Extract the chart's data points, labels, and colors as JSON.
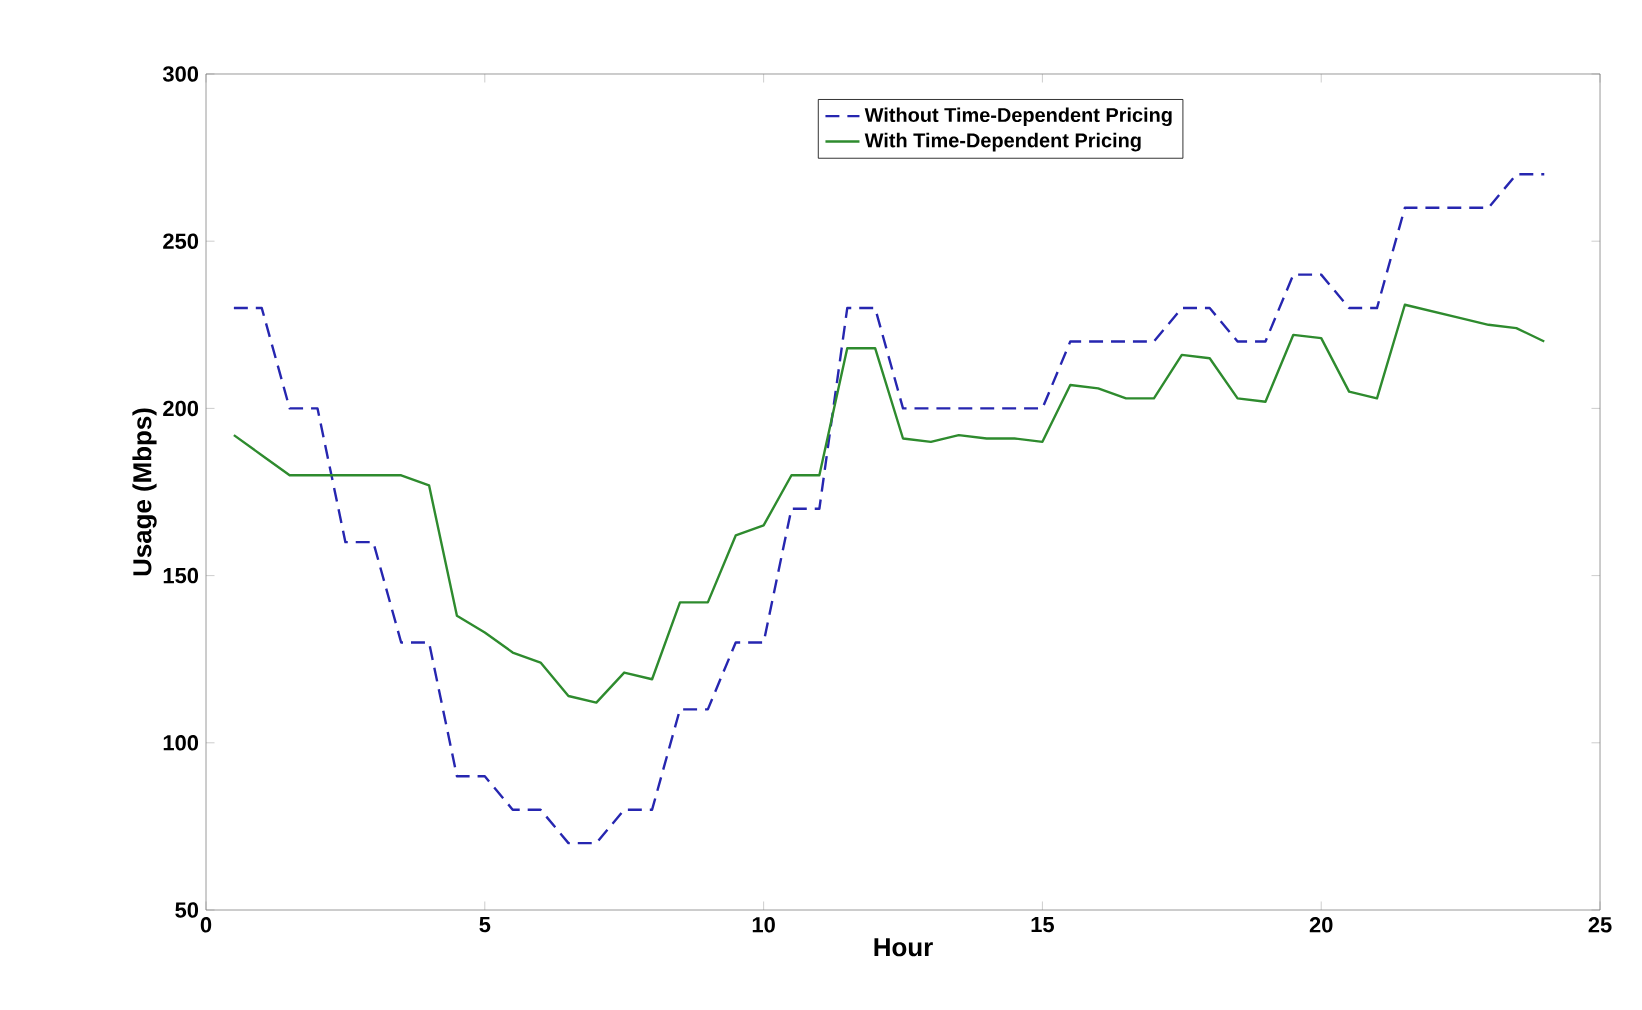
{
  "chart_data": {
    "type": "line",
    "xlabel": "Hour",
    "ylabel": "Usage (Mbps)",
    "x": [
      0.5,
      1,
      1.5,
      2,
      2.5,
      3,
      3.5,
      4,
      4.5,
      5,
      5.5,
      6,
      6.5,
      7,
      7.5,
      8,
      8.5,
      9,
      9.5,
      10,
      10.5,
      11,
      11.5,
      12,
      12.5,
      13,
      13.5,
      14,
      14.5,
      15,
      15.5,
      16,
      16.5,
      17,
      17.5,
      18,
      18.5,
      19,
      19.5,
      20,
      20.5,
      21,
      21.5,
      22,
      22.5,
      23,
      23.5,
      24
    ],
    "series": [
      {
        "name": "Without Time-Dependent Pricing",
        "color": "#2626b0",
        "line_style": "dashed",
        "values": [
          230,
          230,
          200,
          200,
          160,
          160,
          130,
          130,
          90,
          90,
          80,
          80,
          70,
          70,
          80,
          80,
          110,
          110,
          130,
          130,
          170,
          170,
          230,
          230,
          200,
          200,
          200,
          200,
          200,
          200,
          220,
          220,
          220,
          220,
          230,
          230,
          220,
          220,
          240,
          240,
          230,
          230,
          260,
          260,
          260,
          260,
          270,
          270
        ]
      },
      {
        "name": "With Time-Dependent Pricing",
        "color": "#2e8b2e",
        "line_style": "solid",
        "values": [
          192,
          186,
          180,
          180,
          180,
          180,
          180,
          177,
          138,
          133,
          127,
          124,
          114,
          112,
          121,
          119,
          142,
          142,
          162,
          165,
          180,
          180,
          218,
          218,
          191,
          190,
          192,
          191,
          191,
          190,
          207,
          206,
          203,
          203,
          216,
          215,
          203,
          202,
          222,
          221,
          205,
          203,
          231,
          229,
          227,
          225,
          224,
          220
        ]
      }
    ],
    "xlim": [
      0,
      25
    ],
    "xticks": [
      0,
      5,
      10,
      15,
      20,
      25
    ],
    "ylim": [
      50,
      300
    ],
    "yticks": [
      50,
      100,
      150,
      200,
      250,
      300
    ],
    "legend": "top",
    "marker": "none"
  }
}
